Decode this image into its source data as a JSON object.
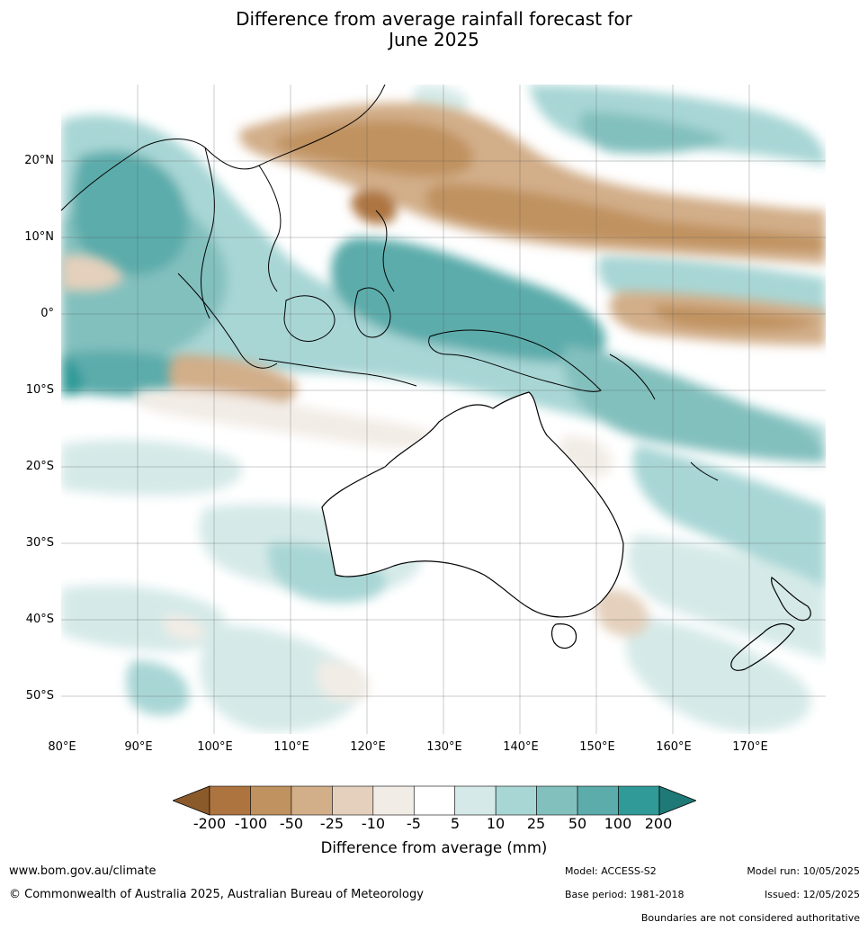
{
  "title_line1": "Difference from average rainfall forecast for",
  "title_line2": "June 2025",
  "lat_labels": [
    "20°N",
    "10°N",
    "0°",
    "10°S",
    "20°S",
    "30°S",
    "40°S",
    "50°S"
  ],
  "lon_labels": [
    "80°E",
    "90°E",
    "100°E",
    "110°E",
    "120°E",
    "130°E",
    "140°E",
    "150°E",
    "160°E",
    "170°E"
  ],
  "legend": {
    "label": "Difference from average (mm)",
    "ticks": [
      "-200",
      "-100",
      "-50",
      "-25",
      "-10",
      "-5",
      "5",
      "10",
      "25",
      "50",
      "100",
      "200"
    ],
    "colors": [
      "#8b5a2b",
      "#ad7440",
      "#c0925f",
      "#d2ae89",
      "#e4d0bc",
      "#f2ece6",
      "#ffffff",
      "#d5eae8",
      "#a8d6d5",
      "#82c0be",
      "#5cacab",
      "#2f9a97",
      "#1f7a77"
    ]
  },
  "footer": {
    "website": "www.bom.gov.au/climate",
    "copyright": "© Commonwealth of Australia 2025, Australian Bureau of Meteorology",
    "model": "Model: ACCESS-S2",
    "base_period": "Base period: 1981-2018",
    "model_run": "Model run: 10/05/2025",
    "issued": "Issued: 12/05/2025",
    "disclaimer": "Boundaries are not considered authoritative"
  }
}
